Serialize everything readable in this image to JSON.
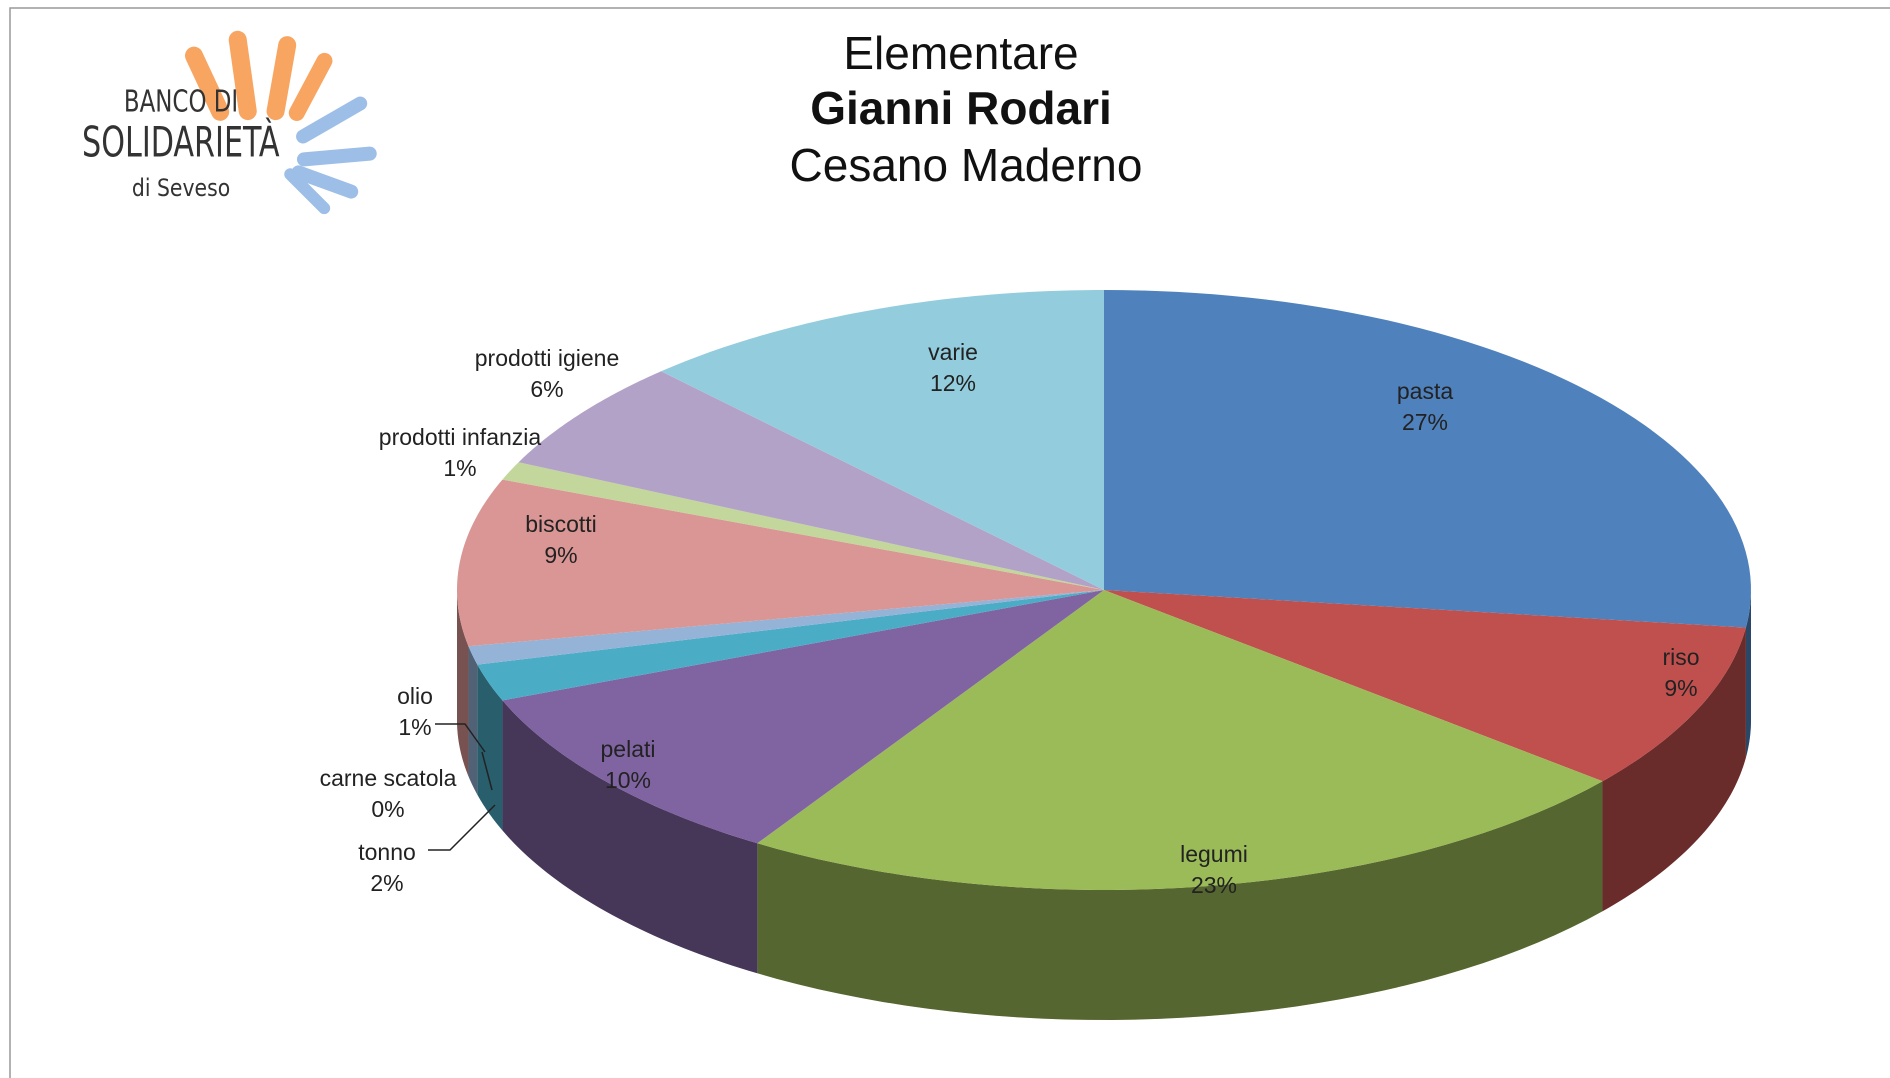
{
  "logo": {
    "line1": "BANCO DI",
    "line2": "SOLIDARIETÀ",
    "line3": "di Seveso"
  },
  "chart_data": {
    "type": "pie3d",
    "title": [
      "Elementare",
      "Gianni Rodari",
      "Cesano Maderno"
    ],
    "categories": [
      "pasta",
      "riso",
      "legumi",
      "pelati",
      "tonno",
      "carne scatola",
      "olio",
      "biscotti",
      "prodotti infanzia",
      "prodotti igiene",
      "varie"
    ],
    "values": [
      27,
      9,
      23,
      10,
      2,
      0,
      1,
      9,
      1,
      6,
      12
    ],
    "value_labels": [
      "27%",
      "9%",
      "23%",
      "10%",
      "2%",
      "0%",
      "1%",
      "9%",
      "1%",
      "6%",
      "12%"
    ],
    "colors": [
      "#4f81bd",
      "#c0504d",
      "#9bbb59",
      "#8064a2",
      "#4bacc6",
      "#f79646",
      "#95b3d7",
      "#d99694",
      "#c3d69b",
      "#b3a2c7",
      "#93cddd"
    ]
  }
}
